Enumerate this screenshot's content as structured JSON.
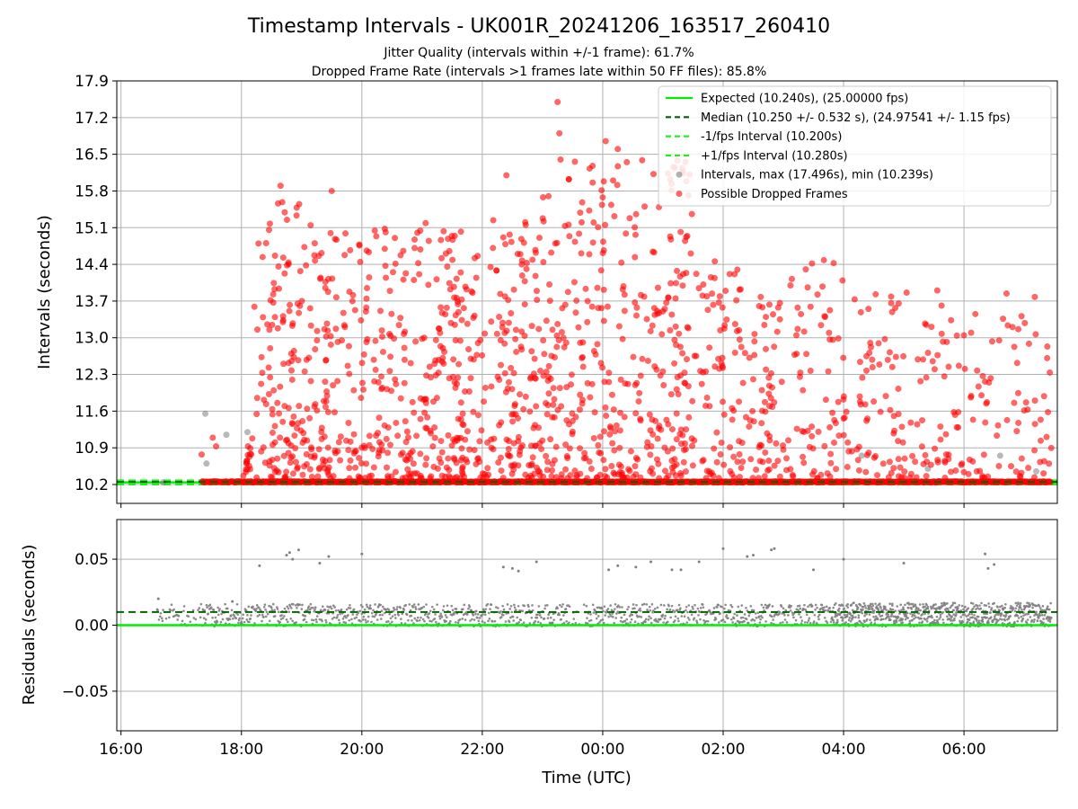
{
  "figure": {
    "title": "Timestamp Intervals - UK001R_20241206_163517_260410",
    "subtitle_1": "Jitter Quality (intervals within +/-1 frame): 61.7%",
    "subtitle_2": "Dropped Frame Rate (intervals >1 frames late within 50 FF files): 85.8%"
  },
  "colors": {
    "expected": "#00ee00",
    "median": "#006400",
    "interval_band": "#22ee22",
    "intervals": "#808080",
    "dropped": "#ff0000",
    "grid": "#b0b0b0"
  },
  "chart_data": [
    {
      "type": "scatter",
      "id": "intervals",
      "xlabel": "",
      "ylabel": "Intervals (seconds)",
      "x_unit": "hours since 16:00 UTC",
      "xlim": [
        -0.07,
        15.55
      ],
      "ylim": [
        9.84,
        17.9
      ],
      "yticks": [
        "10.2",
        "10.9",
        "11.6",
        "12.3",
        "13.0",
        "13.7",
        "14.4",
        "15.1",
        "15.8",
        "16.5",
        "17.2",
        "17.9"
      ],
      "grid": true,
      "legend_position": "top-right",
      "legend": [
        {
          "kind": "line",
          "style": "solid",
          "color": "#00ee00",
          "label": "Expected (10.240s), (25.00000 fps)"
        },
        {
          "kind": "line",
          "style": "dashed",
          "color": "#006400",
          "label": "Median (10.250 +/- 0.532 s), (24.97541 +/- 1.15 fps)"
        },
        {
          "kind": "line",
          "style": "dashed",
          "color": "#22ee22",
          "label": "-1/fps Interval (10.200s)"
        },
        {
          "kind": "line",
          "style": "dashed",
          "color": "#22ee22",
          "label": "+1/fps Interval (10.280s)"
        },
        {
          "kind": "marker",
          "color": "#808080",
          "label": "Intervals, max (17.496s), min (10.239s)"
        },
        {
          "kind": "marker",
          "color": "#ff0000",
          "label": "Possible Dropped Frames"
        }
      ],
      "reference_lines": {
        "expected": 10.24,
        "median": 10.25,
        "minus_one_fps": 10.2,
        "plus_one_fps": 10.28
      },
      "series": [
        {
          "name": "Intervals",
          "points": [
            [
              0.7,
              10.24
            ],
            [
              1.4,
              11.55
            ],
            [
              1.42,
              10.6
            ],
            [
              1.75,
              11.15
            ],
            [
              2.1,
              11.2
            ],
            [
              2.8,
              10.3
            ],
            [
              8.1,
              10.25
            ],
            [
              12.3,
              10.75
            ],
            [
              13.4,
              10.5
            ],
            [
              14.6,
              10.75
            ],
            [
              15.2,
              10.45
            ]
          ]
        },
        {
          "name": "Possible Dropped Frames",
          "baseline_value": 10.24,
          "baseline_x": [
            1.35,
            15.45
          ],
          "max_value": 17.496,
          "points_generated": 1500
        }
      ]
    },
    {
      "type": "scatter",
      "id": "residuals",
      "xlabel": "Time (UTC)",
      "ylabel": "Residuals (seconds)",
      "x_unit": "hours since 16:00 UTC",
      "xlim": [
        -0.07,
        15.55
      ],
      "ylim": [
        -0.08,
        0.08
      ],
      "yticks": [
        "0.05",
        "0.00",
        "−0.05"
      ],
      "xticks": [
        "16:00",
        "18:00",
        "20:00",
        "22:00",
        "00:00",
        "02:00",
        "04:00",
        "06:00"
      ],
      "grid": true,
      "reference_lines": {
        "expected": 0.0,
        "median": 0.01
      },
      "series": [
        {
          "name": "Residuals",
          "outliers": [
            [
              0.62,
              0.02
            ],
            [
              1.85,
              0.018
            ],
            [
              2.3,
              0.045
            ],
            [
              2.75,
              0.053
            ],
            [
              2.8,
              0.055
            ],
            [
              2.85,
              0.05
            ],
            [
              2.95,
              0.057
            ],
            [
              3.3,
              0.047
            ],
            [
              3.45,
              0.052
            ],
            [
              4.0,
              0.054
            ],
            [
              6.35,
              0.044
            ],
            [
              6.5,
              0.043
            ],
            [
              6.6,
              0.041
            ],
            [
              6.9,
              0.048
            ],
            [
              8.1,
              0.042
            ],
            [
              8.25,
              0.045
            ],
            [
              8.55,
              0.044
            ],
            [
              8.8,
              0.048
            ],
            [
              9.15,
              0.042
            ],
            [
              9.3,
              0.042
            ],
            [
              9.6,
              0.048
            ],
            [
              10.0,
              0.058
            ],
            [
              10.4,
              0.052
            ],
            [
              10.5,
              0.053
            ],
            [
              10.8,
              0.057
            ],
            [
              10.85,
              0.058
            ],
            [
              11.5,
              0.042
            ],
            [
              12.0,
              0.05
            ],
            [
              13.0,
              0.047
            ],
            [
              14.35,
              0.054
            ],
            [
              14.4,
              0.043
            ],
            [
              14.5,
              0.046
            ]
          ]
        }
      ]
    }
  ]
}
